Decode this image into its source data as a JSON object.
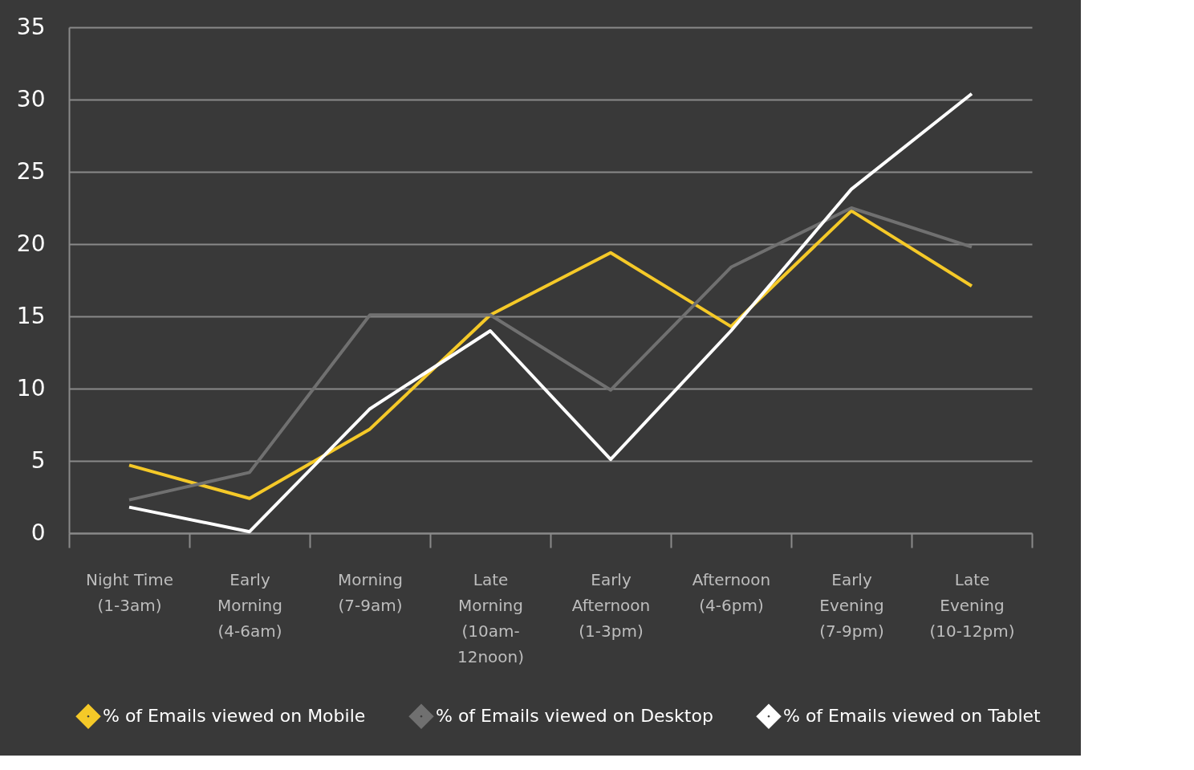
{
  "chart_data": {
    "type": "line",
    "categories": [
      "Night Time\n(1-3am)",
      "Early\nMorning\n(4-6am)",
      "Morning\n(7-9am)",
      "Late\nMorning\n(10am-\n12noon)",
      "Early\nAfternoon\n(1-3pm)",
      "Afternoon\n(4-6pm)",
      "Early\nEvening\n(7-9pm)",
      "Late\nEvening\n(10-12pm)"
    ],
    "series": [
      {
        "name": "% of Emails viewed on Mobile",
        "color": "#f5c928",
        "values": [
          4.7,
          2.4,
          7.2,
          15.1,
          19.4,
          14.3,
          22.3,
          17.1
        ]
      },
      {
        "name": "% of Emails viewed on Desktop",
        "color": "#707070",
        "values": [
          2.3,
          4.2,
          15.1,
          15.1,
          9.9,
          18.4,
          22.5,
          19.8
        ]
      },
      {
        "name": "% of Emails viewed on Tablet",
        "color": "#ffffff",
        "values": [
          1.8,
          0.1,
          8.6,
          14.0,
          5.1,
          14.0,
          23.8,
          30.4
        ]
      }
    ],
    "ylim": [
      0,
      35
    ],
    "yticks": [
      0,
      5,
      10,
      15,
      20,
      25,
      30,
      35
    ],
    "grid": "y",
    "legend": "bottom",
    "marker": "none",
    "line_style": "solid"
  }
}
